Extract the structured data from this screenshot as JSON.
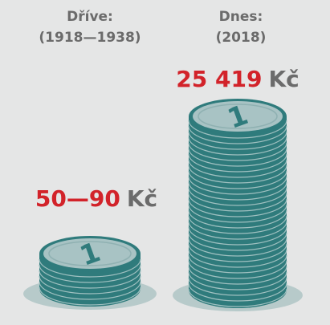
{
  "columns": [
    {
      "label": "Dříve:",
      "period": "(1918—1938)",
      "amount": "50—90",
      "currency": "Kč"
    },
    {
      "label": "Dnes:",
      "period": "(2018)",
      "amount": "25 419",
      "currency": "Kč"
    }
  ],
  "coin_label": "1"
}
